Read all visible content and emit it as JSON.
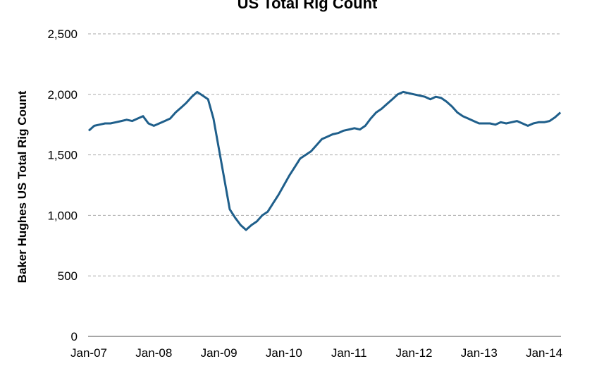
{
  "chart_data": {
    "type": "line",
    "title": "US Total Rig Count",
    "xlabel": "",
    "ylabel": "Baker Hughes US Total Rig Count",
    "ylim": [
      0,
      2500
    ],
    "yticks": [
      "0",
      "500",
      "1,000",
      "1,500",
      "2,000",
      "2,500"
    ],
    "ytick_values": [
      0,
      500,
      1000,
      1500,
      2000,
      2500
    ],
    "xticks": [
      "Jan-07",
      "Jan-08",
      "Jan-09",
      "Jan-10",
      "Jan-11",
      "Jan-12",
      "Jan-13",
      "Jan-14"
    ],
    "grid": "horizontal dashed",
    "line_color": "#1f5f8b",
    "x_start": "Jan-07",
    "x_frequency": "monthly",
    "values": [
      1700,
      1740,
      1750,
      1760,
      1760,
      1770,
      1780,
      1790,
      1780,
      1800,
      1820,
      1760,
      1740,
      1760,
      1780,
      1800,
      1850,
      1890,
      1930,
      1980,
      2020,
      1990,
      1960,
      1800,
      1550,
      1300,
      1050,
      980,
      920,
      880,
      920,
      950,
      1000,
      1030,
      1100,
      1170,
      1250,
      1330,
      1400,
      1470,
      1500,
      1530,
      1580,
      1630,
      1650,
      1670,
      1680,
      1700,
      1710,
      1720,
      1710,
      1740,
      1800,
      1850,
      1880,
      1920,
      1960,
      2000,
      2020,
      2010,
      2000,
      1990,
      1980,
      1960,
      1980,
      1970,
      1940,
      1900,
      1850,
      1820,
      1800,
      1780,
      1760,
      1760,
      1760,
      1750,
      1770,
      1760,
      1770,
      1780,
      1760,
      1740,
      1760,
      1770,
      1770,
      1780,
      1810,
      1850
    ]
  }
}
